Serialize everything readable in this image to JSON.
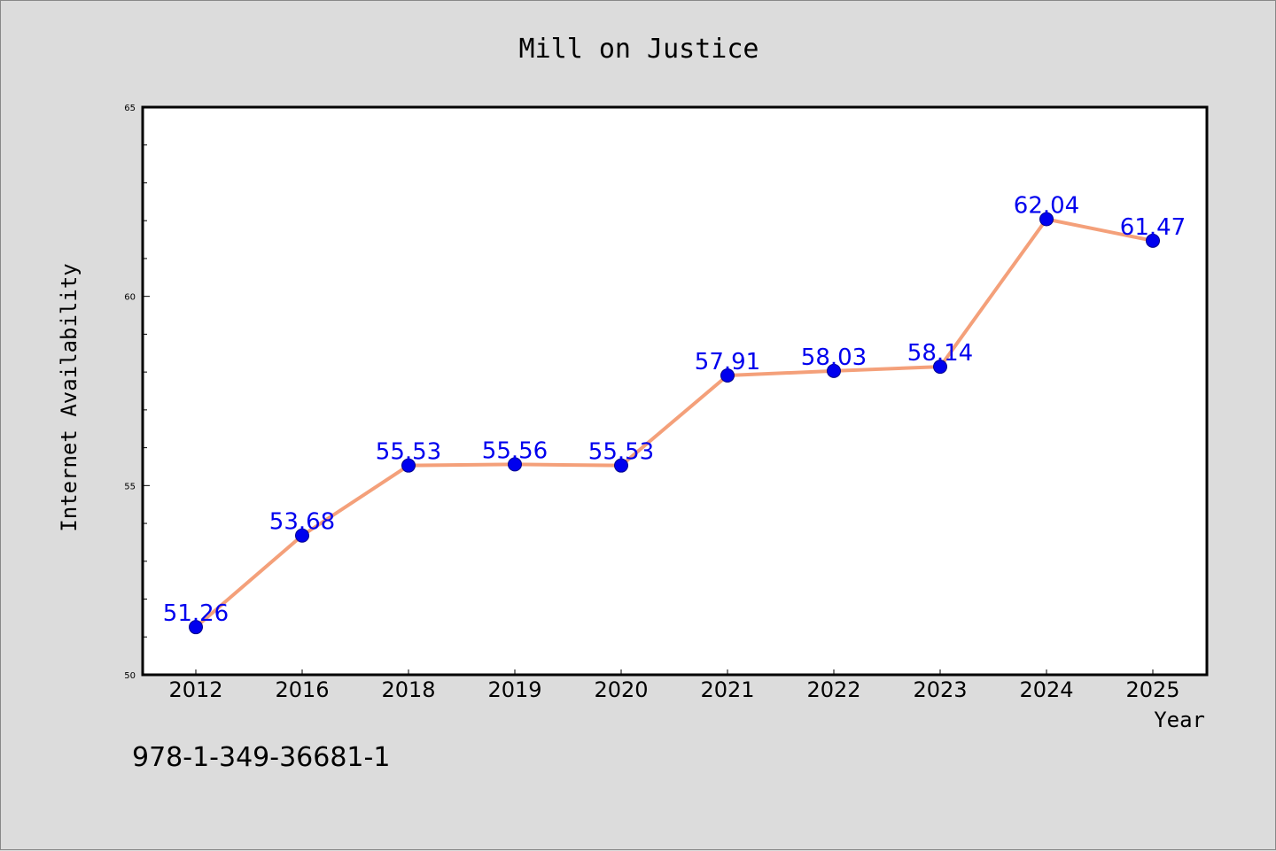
{
  "chart_data": {
    "type": "line",
    "title": "Mill on Justice",
    "xlabel": "Year",
    "ylabel": "Internet Availability",
    "categories": [
      "2012",
      "2016",
      "2018",
      "2019",
      "2020",
      "2021",
      "2022",
      "2023",
      "2024",
      "2025"
    ],
    "series": [
      {
        "values": [
          51.26,
          53.68,
          55.53,
          55.56,
          55.53,
          57.91,
          58.03,
          58.14,
          62.04,
          61.47
        ],
        "labels": [
          "51.26",
          "53.68",
          "55.53",
          "55.56",
          "55.53",
          "57.91",
          "58.03",
          "58.14",
          "62.04",
          "61.47"
        ],
        "line_color": "#f4a07a",
        "marker_color": "#0000ee"
      }
    ],
    "ylim": [
      50,
      65
    ],
    "yticks": [
      50,
      55,
      60,
      65
    ],
    "ytick_labels": [
      "50",
      "55",
      "60",
      "65"
    ],
    "grid": false,
    "legend": "none"
  },
  "footer": {
    "isbn": "978-1-349-36681-1"
  }
}
